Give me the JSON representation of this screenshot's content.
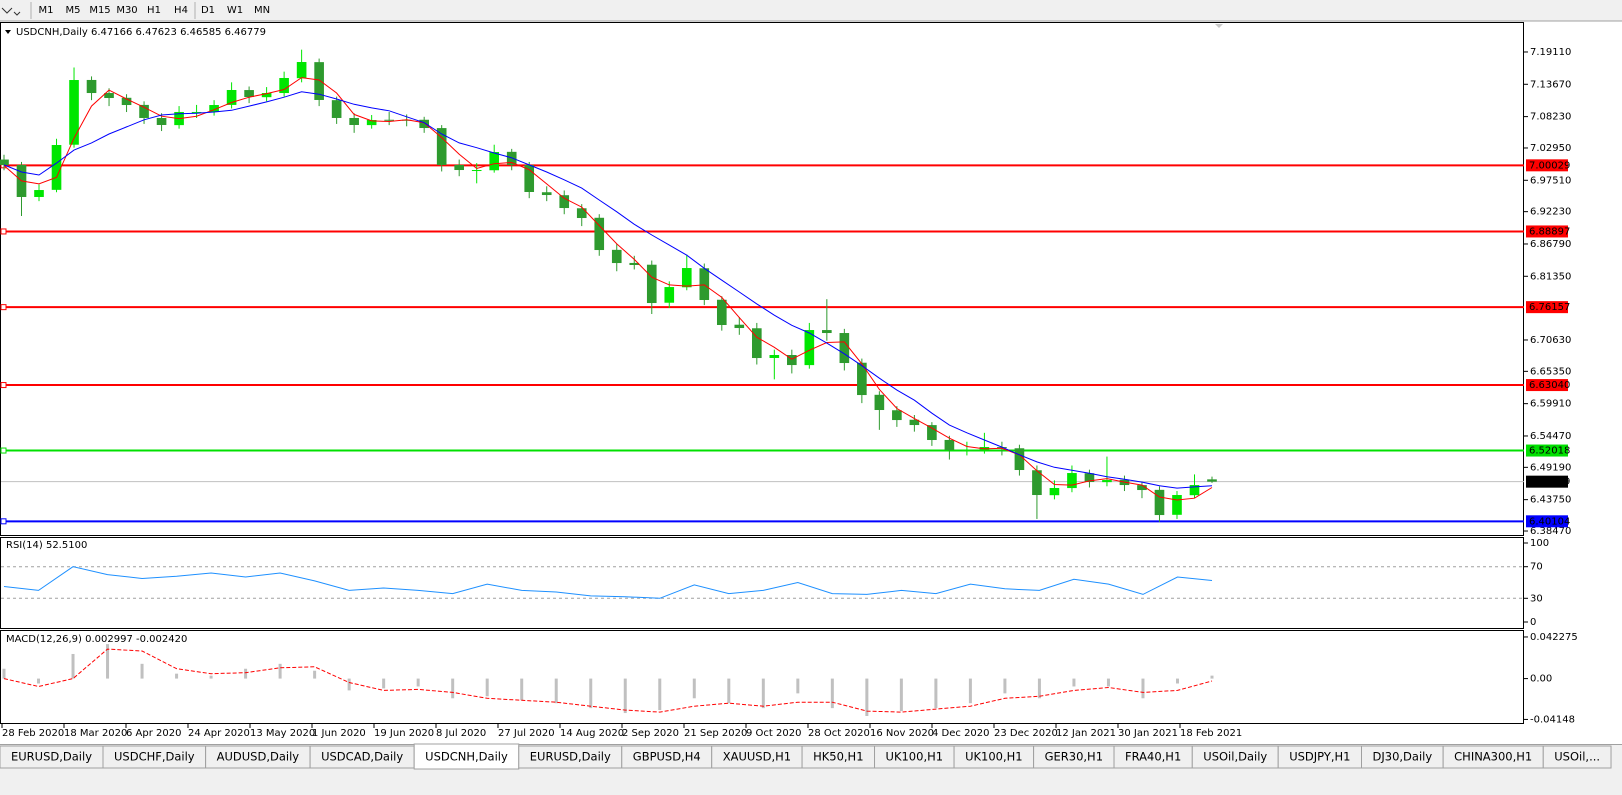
{
  "toolbar": {
    "timeframes": [
      "M1",
      "M5",
      "M15",
      "M30",
      "H1",
      "H4",
      "D1",
      "W1",
      "MN"
    ]
  },
  "chart_data": [
    {
      "type": "candlestick",
      "title": "USDCNH,Daily 6.47166 6.47623 6.46585 6.46779",
      "date_labels": [
        "28 Feb 2020",
        "18 Mar 2020",
        "6 Apr 2020",
        "24 Apr 2020",
        "13 May 2020",
        "1 Jun 2020",
        "19 Jun 2020",
        "8 Jul 2020",
        "27 Jul 2020",
        "14 Aug 2020",
        "2 Sep 2020",
        "21 Sep 2020",
        "9 Oct 2020",
        "28 Oct 2020",
        "16 Nov 2020",
        "4 Dec 2020",
        "23 Dec 2020",
        "12 Jan 2021",
        "30 Jan 2021",
        "18 Feb 2021"
      ],
      "open": [
        7.01,
        7.001,
        6.947,
        6.959,
        7.035,
        7.144,
        7.122,
        7.114,
        7.102,
        7.08,
        7.068,
        7.09,
        7.09,
        7.102,
        7.127,
        7.115,
        7.122,
        7.147,
        7.174,
        7.11,
        7.08,
        7.068,
        7.077,
        7.077,
        7.077,
        7.063,
        7.001,
        6.992,
        6.992,
        7.023,
        7.001,
        6.955,
        6.95,
        6.928,
        6.912,
        6.858,
        6.836,
        6.833,
        6.769,
        6.795,
        6.827,
        6.774,
        6.732,
        6.726,
        6.676,
        6.681,
        6.664,
        6.723,
        6.718,
        6.668,
        6.614,
        6.588,
        6.572,
        6.563,
        6.538,
        6.521,
        6.521,
        6.526,
        6.524,
        6.487,
        6.445,
        6.457,
        6.482,
        6.467,
        6.471,
        6.462,
        6.454,
        6.412,
        6.445,
        6.47166
      ],
      "high": [
        7.018,
        7.006,
        6.968,
        7.045,
        7.165,
        7.15,
        7.13,
        7.12,
        7.108,
        7.088,
        7.1,
        7.102,
        7.11,
        7.14,
        7.133,
        7.132,
        7.158,
        7.195,
        7.18,
        7.116,
        7.088,
        7.085,
        7.09,
        7.086,
        7.082,
        7.068,
        7.01,
        7.004,
        7.035,
        7.028,
        7.006,
        6.965,
        6.958,
        6.935,
        6.918,
        6.868,
        6.848,
        6.84,
        6.805,
        6.85,
        6.835,
        6.78,
        6.745,
        6.735,
        6.69,
        6.69,
        6.735,
        6.775,
        6.725,
        6.675,
        6.62,
        6.595,
        6.58,
        6.568,
        6.545,
        6.535,
        6.55,
        6.535,
        6.53,
        6.495,
        6.47,
        6.495,
        6.488,
        6.51,
        6.478,
        6.468,
        6.46,
        6.452,
        6.48,
        6.47623
      ],
      "low": [
        6.992,
        6.915,
        6.94,
        6.955,
        7.03,
        7.11,
        7.1,
        7.09,
        7.07,
        7.058,
        7.062,
        7.08,
        7.084,
        7.096,
        7.105,
        7.108,
        7.116,
        7.14,
        7.1,
        7.07,
        7.055,
        7.062,
        7.068,
        7.066,
        7.055,
        6.99,
        6.982,
        6.97,
        6.988,
        6.992,
        6.945,
        6.94,
        6.918,
        6.898,
        6.848,
        6.822,
        6.825,
        6.75,
        6.76,
        6.79,
        6.765,
        6.722,
        6.715,
        6.665,
        6.64,
        6.65,
        6.658,
        6.705,
        6.655,
        6.6,
        6.555,
        6.56,
        6.552,
        6.528,
        6.505,
        6.512,
        6.515,
        6.512,
        6.478,
        6.405,
        6.438,
        6.45,
        6.458,
        6.46,
        6.452,
        6.44,
        6.4,
        6.405,
        6.44,
        6.46585
      ],
      "close": [
        7.0008,
        6.947,
        6.9587,
        7.0345,
        7.1439,
        7.122,
        7.1136,
        7.1018,
        7.08,
        7.0682,
        7.0901,
        7.0901,
        7.1018,
        7.1271,
        7.1153,
        7.122,
        7.1473,
        7.1742,
        7.1103,
        7.08,
        7.0682,
        7.0766,
        7.0766,
        7.0766,
        7.0631,
        7.0008,
        6.9924,
        6.9924,
        7.0227,
        7.0008,
        6.9554,
        6.9503,
        6.9284,
        6.9116,
        6.8577,
        6.8358,
        6.8325,
        6.7685,
        6.7954,
        6.8274,
        6.7736,
        6.7315,
        6.7264,
        6.6759,
        6.681,
        6.6641,
        6.723,
        6.718,
        6.6675,
        6.6136,
        6.5884,
        6.5715,
        6.5631,
        6.5379,
        6.521,
        6.521,
        6.5261,
        6.5244,
        6.4874,
        6.4453,
        6.4571,
        6.4823,
        6.4672,
        6.4705,
        6.4621,
        6.4537,
        6.4116,
        6.4453,
        6.4621,
        6.46779
      ],
      "up_color": "#00e600",
      "down_color": "#2e9a2e",
      "overlays": [
        {
          "color": "#ff0000",
          "values": [
            7.0,
            6.974,
            6.969,
            6.98,
            7.046,
            7.1,
            7.127,
            7.112,
            7.098,
            7.083,
            7.079,
            7.083,
            7.094,
            7.106,
            7.115,
            7.121,
            7.128,
            7.148,
            7.144,
            7.122,
            7.086,
            7.075,
            7.074,
            7.077,
            7.072,
            7.047,
            7.019,
            6.995,
            7.003,
            7.005,
            6.993,
            6.969,
            6.945,
            6.93,
            6.899,
            6.868,
            6.842,
            6.812,
            6.799,
            6.797,
            6.799,
            6.778,
            6.744,
            6.711,
            6.694,
            6.674,
            6.689,
            6.702,
            6.703,
            6.666,
            6.623,
            6.591,
            6.574,
            6.558,
            6.541,
            6.527,
            6.523,
            6.524,
            6.513,
            6.486,
            6.463,
            6.462,
            6.469,
            6.473,
            6.467,
            6.462,
            6.442,
            6.437,
            6.44,
            6.458
          ]
        },
        {
          "color": "#0000ff",
          "values": [
            7.001,
            6.989,
            6.984,
            7.004,
            7.026,
            7.038,
            7.053,
            7.065,
            7.077,
            7.085,
            7.087,
            7.088,
            7.09,
            7.093,
            7.1,
            7.107,
            7.115,
            7.124,
            7.12,
            7.112,
            7.103,
            7.097,
            7.092,
            7.082,
            7.072,
            7.053,
            7.038,
            7.03,
            7.021,
            7.013,
            7.001,
            6.989,
            6.976,
            6.962,
            6.942,
            6.922,
            6.901,
            6.883,
            6.866,
            6.849,
            6.827,
            6.807,
            6.787,
            6.767,
            6.748,
            6.731,
            6.718,
            6.701,
            6.683,
            6.663,
            6.642,
            6.622,
            6.605,
            6.583,
            6.563,
            6.55,
            6.538,
            6.526,
            6.513,
            6.501,
            6.492,
            6.487,
            6.482,
            6.476,
            6.472,
            6.467,
            6.461,
            6.457,
            6.459,
            6.461
          ]
        }
      ],
      "levels": [
        {
          "value": 7.00029,
          "color": "#ff0000"
        },
        {
          "value": 6.88897,
          "color": "#ff0000"
        },
        {
          "value": 6.76157,
          "color": "#ff0000"
        },
        {
          "value": 6.6304,
          "label": "6.63040",
          "color": "#ff0000"
        },
        {
          "value": 6.52018,
          "color": "#00e000"
        },
        {
          "value": 6.40104,
          "color": "#0000ff"
        }
      ],
      "last_price_color": "#c0c0c0",
      "ylim": [
        6.378,
        7.2382
      ],
      "yticks": [
        {
          "value": 7.1911,
          "label": "7.19110"
        },
        {
          "value": 7.1367,
          "label": "7.13670"
        },
        {
          "value": 7.0823,
          "label": "7.08230"
        },
        {
          "value": 7.0295,
          "label": "7.02950"
        },
        {
          "value": 6.9751,
          "label": "6.97510"
        },
        {
          "value": 6.9223,
          "label": "6.92230"
        },
        {
          "value": 6.8679,
          "label": "6.86790"
        },
        {
          "value": 6.8135,
          "label": "6.81350"
        },
        {
          "value": 6.7063,
          "label": "6.70630"
        },
        {
          "value": 6.6535,
          "label": "6.65350"
        },
        {
          "value": 6.5991,
          "label": "6.59910"
        },
        {
          "value": 6.5447,
          "label": "6.54470"
        },
        {
          "value": 6.4919,
          "label": "6.49190"
        },
        {
          "value": 6.4375,
          "label": "6.43750"
        },
        {
          "value": 6.3847,
          "label": "6.38470"
        }
      ]
    },
    {
      "type": "line",
      "title": "RSI(14) 52.5100",
      "color": "#1e90ff",
      "values": [
        45,
        40,
        70,
        60,
        55,
        58,
        62,
        57,
        62,
        52,
        40,
        43,
        40,
        36,
        48,
        40,
        38,
        33,
        32,
        30,
        47,
        36,
        40,
        50,
        36,
        35,
        40,
        36,
        48,
        42,
        40,
        54,
        48,
        35,
        57,
        52.51
      ],
      "ylim": [
        0,
        100
      ],
      "yticks": [
        100,
        70,
        30,
        0
      ],
      "dashed_levels": [
        70,
        30
      ]
    },
    {
      "type": "macd",
      "title": "MACD(12,26,9) 0.002997 -0.002420",
      "color": "#c0c0c0",
      "signal_color": "#ff0000",
      "values": [
        0.01,
        -0.005,
        0.025,
        0.035,
        0.015,
        0.005,
        0.003,
        0.01,
        0.015,
        0.008,
        -0.012,
        -0.01,
        -0.008,
        -0.02,
        -0.018,
        -0.022,
        -0.025,
        -0.03,
        -0.035,
        -0.032,
        -0.02,
        -0.025,
        -0.03,
        -0.015,
        -0.03,
        -0.038,
        -0.033,
        -0.03,
        -0.025,
        -0.015,
        -0.02,
        -0.008,
        -0.008,
        -0.02,
        -0.005,
        0.002997
      ],
      "signal": [
        0.0,
        -0.008,
        0.0,
        0.03,
        0.028,
        0.01,
        0.005,
        0.006,
        0.011,
        0.012,
        -0.004,
        -0.012,
        -0.011,
        -0.014,
        -0.02,
        -0.022,
        -0.024,
        -0.028,
        -0.032,
        -0.034,
        -0.028,
        -0.025,
        -0.028,
        -0.024,
        -0.024,
        -0.033,
        -0.034,
        -0.031,
        -0.028,
        -0.02,
        -0.018,
        -0.012,
        -0.009,
        -0.014,
        -0.012,
        -0.00242
      ],
      "ylim": [
        -0.0451,
        0.0463
      ],
      "yticks": [
        0.042275,
        {
          "value": 0,
          "label": "0.00"
        },
        -0.04148
      ]
    }
  ],
  "tabs": {
    "items": [
      "EURUSD,Daily",
      "USDCHF,Daily",
      "AUDUSD,Daily",
      "USDCAD,Daily",
      "USDCNH,Daily",
      "EURUSD,Daily",
      "GBPUSD,H4",
      "XAUUSD,H1",
      "HK50,H1",
      "UK100,H1",
      "UK100,H1",
      "GER30,H1",
      "FRA40,H1",
      "USOil,Daily",
      "USDJPY,H1",
      "DJ30,Daily",
      "CHINA300,H1",
      "USOil,..."
    ],
    "active": 4
  }
}
